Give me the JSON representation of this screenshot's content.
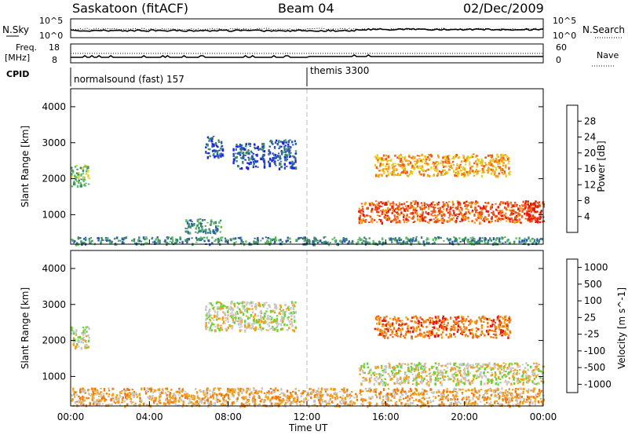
{
  "header": {
    "station": "Saskatoon (fitACF)",
    "beam": "Beam 04",
    "date": "02/Dec/2009"
  },
  "noise_panel": {
    "left_label": "N.Sky",
    "right_label": "N.Search",
    "left_ticks": [
      "10^5",
      "10^0"
    ],
    "right_ticks": [
      "10^5",
      "10^0"
    ]
  },
  "freq_panel": {
    "left_label_1": "Freq.",
    "left_label_2": "[MHz]",
    "right_label": "Nave",
    "left_ticks": [
      "18",
      "8"
    ],
    "right_ticks": [
      "60",
      "0"
    ]
  },
  "cpid": {
    "label": "CPID",
    "modes": [
      {
        "name": "normalsound (fast) 157",
        "start_hour": 0
      },
      {
        "name": "themis 3300",
        "start_hour": 12
      }
    ]
  },
  "x_axis": {
    "title": "Time UT",
    "ticks": [
      "00:00",
      "04:00",
      "08:00",
      "12:00",
      "16:00",
      "20:00",
      "00:00"
    ],
    "tick_hours": [
      0,
      4,
      8,
      12,
      16,
      20,
      24
    ],
    "range_hours": [
      0,
      24
    ]
  },
  "chart_data": [
    {
      "type": "heatmap",
      "title": "Power",
      "xlabel": "Time UT",
      "ylabel": "Slant Range [km]",
      "xlim": [
        0,
        24
      ],
      "ylim": [
        180,
        4500
      ],
      "yticks": [
        "1000",
        "2000",
        "3000",
        "4000"
      ],
      "ytick_values": [
        1000,
        2000,
        3000,
        4000
      ],
      "colorbar": {
        "label": "Power [dB]",
        "ticks": [
          "4",
          "8",
          "12",
          "16",
          "20",
          "24",
          "28"
        ],
        "colors": [
          "#1b21f2",
          "#2a5bb0",
          "#3b8a6d",
          "#5dbb63",
          "#e6d21f",
          "#f2a11a",
          "#f05c16",
          "#e8160f"
        ]
      },
      "regions": [
        {
          "t": [
            0.0,
            0.9
          ],
          "r": [
            1800,
            2400
          ],
          "level": 3
        },
        {
          "t": [
            0.0,
            24.0
          ],
          "r": [
            200,
            400
          ],
          "level": 2
        },
        {
          "t": [
            5.8,
            7.6
          ],
          "r": [
            500,
            900
          ],
          "level": 2
        },
        {
          "t": [
            6.8,
            7.7
          ],
          "r": [
            2600,
            3200
          ],
          "level": 1
        },
        {
          "t": [
            8.2,
            9.8
          ],
          "r": [
            2300,
            3000
          ],
          "level": 1
        },
        {
          "t": [
            10.0,
            11.4
          ],
          "r": [
            2300,
            3100
          ],
          "level": 1
        },
        {
          "t": [
            14.6,
            23.8
          ],
          "r": [
            800,
            1400
          ],
          "level": 6
        },
        {
          "t": [
            15.4,
            22.3
          ],
          "r": [
            2100,
            2700
          ],
          "level": 5
        },
        {
          "t": [
            23.0,
            24.0
          ],
          "r": [
            800,
            1400
          ],
          "level": 7
        }
      ]
    },
    {
      "type": "heatmap",
      "title": "Velocity",
      "xlabel": "Time UT",
      "ylabel": "Slant Range [km]",
      "xlim": [
        0,
        24
      ],
      "ylim": [
        180,
        4500
      ],
      "yticks": [
        "1000",
        "2000",
        "3000",
        "4000"
      ],
      "ytick_values": [
        1000,
        2000,
        3000,
        4000
      ],
      "colorbar": {
        "label": "Velocity [m s^-1]",
        "ticks": [
          "1000",
          "500",
          "100",
          "25",
          "-25",
          "-100",
          "-500",
          "-1000"
        ],
        "colors": [
          "#1b21f2",
          "#2a5bb0",
          "#3a8f3f",
          "#6bd435",
          "#c8c8c8",
          "#f2a11a",
          "#f07810",
          "#e8160f"
        ]
      },
      "regions": [
        {
          "t": [
            0.0,
            0.9
          ],
          "r": [
            1800,
            2400
          ],
          "level": 4
        },
        {
          "t": [
            0.0,
            24.0
          ],
          "r": [
            200,
            700
          ],
          "level": 5
        },
        {
          "t": [
            6.8,
            11.4
          ],
          "r": [
            2300,
            3100
          ],
          "level": 4
        },
        {
          "t": [
            14.6,
            24.0
          ],
          "r": [
            800,
            1400
          ],
          "level": 4
        },
        {
          "t": [
            15.4,
            22.3
          ],
          "r": [
            2100,
            2700
          ],
          "level": 6
        }
      ]
    }
  ]
}
